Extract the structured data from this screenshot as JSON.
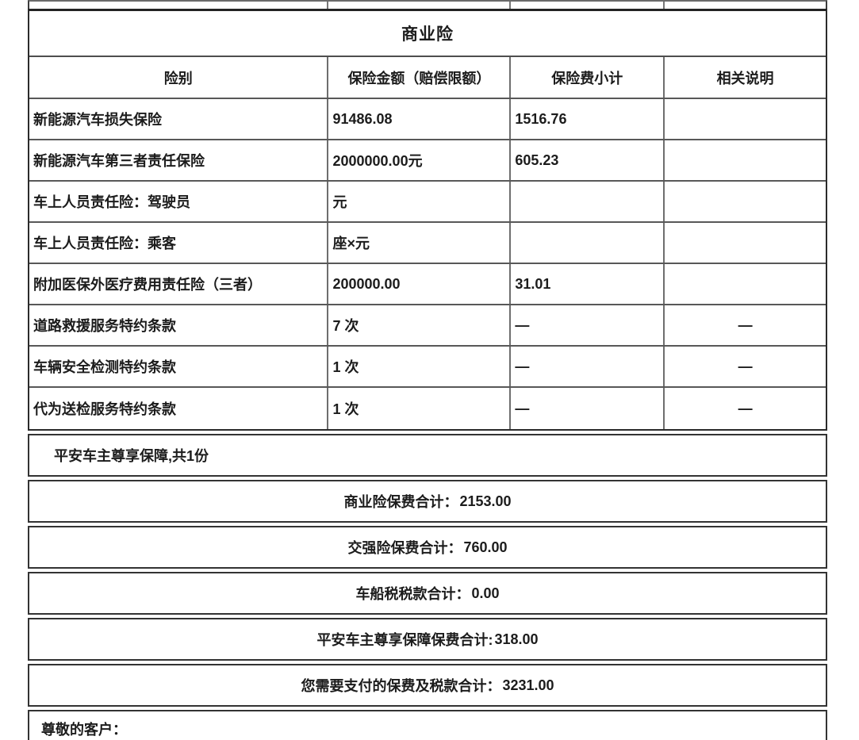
{
  "doc": {
    "title": "商业险",
    "columns": {
      "type": "险别",
      "amount": "保险金额（赔偿限额）",
      "premium": "保险费小计",
      "note": "相关说明"
    },
    "rows": [
      {
        "name": "新能源汽车损失保险",
        "amount": "91486.08",
        "premium": "1516.76",
        "note": ""
      },
      {
        "name": "新能源汽车第三者责任保险",
        "amount": "2000000.00元",
        "premium": "605.23",
        "note": ""
      },
      {
        "name": "车上人员责任险：驾驶员",
        "amount": "元",
        "premium": "",
        "note": ""
      },
      {
        "name": "车上人员责任险：乘客",
        "amount": "座×元",
        "premium": "",
        "note": ""
      },
      {
        "name": "附加医保外医疗费用责任险（三者）",
        "amount": "200000.00",
        "premium": "31.01",
        "note": ""
      },
      {
        "name": "道路救援服务特约条款",
        "amount": "7 次",
        "premium": "—",
        "note": "—"
      },
      {
        "name": "车辆安全检测特约条款",
        "amount": "1 次",
        "premium": "—",
        "note": "—"
      },
      {
        "name": "代为送检服务特约条款",
        "amount": "1 次",
        "premium": "—",
        "note": "—"
      }
    ],
    "addon_line": "平安车主尊享保障,共1份",
    "summaries": [
      {
        "label": "商业险保费合计：",
        "value": "2153.00"
      },
      {
        "label": "交强险保费合计：",
        "value": "760.00"
      },
      {
        "label": "车船税税款合计：",
        "value": "0.00"
      },
      {
        "label": "平安车主尊享保障保费合计:",
        "value": "318.00"
      },
      {
        "label": "您需要支付的保费及税款合计：",
        "value": "3231.00"
      }
    ],
    "closing": "尊敬的客户："
  }
}
